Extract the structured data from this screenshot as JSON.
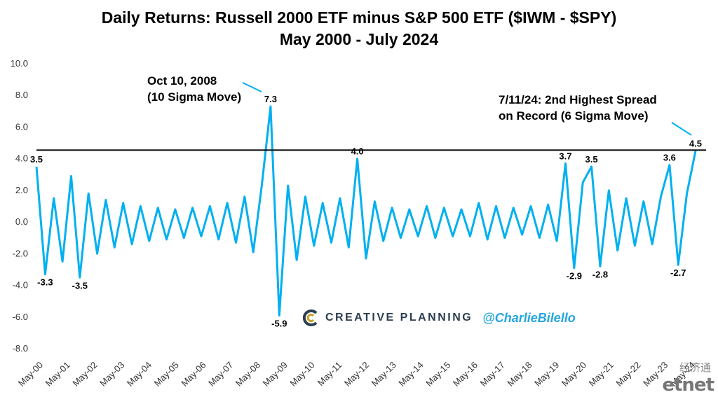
{
  "chart_data": {
    "type": "line",
    "title": "Daily Returns: Russell 2000 ETF minus S&P 500 ETF ($IWM - $SPY)",
    "subtitle": "May 2000 - July 2024",
    "xlabel": "",
    "ylabel": "",
    "ylim": [
      -8.0,
      10.0
    ],
    "y_ticks": [
      "10.0",
      "8.0",
      "6.0",
      "4.0",
      "2.0",
      "0.0",
      "-2.0",
      "-4.0",
      "-6.0",
      "-8.0"
    ],
    "x_ticks": [
      "May-00",
      "May-01",
      "May-02",
      "May-03",
      "May-04",
      "May-05",
      "May-06",
      "May-07",
      "May-08",
      "May-09",
      "May-10",
      "May-11",
      "May-12",
      "May-13",
      "May-14",
      "May-15",
      "May-16",
      "May-17",
      "May-18",
      "May-19",
      "May-20",
      "May-21",
      "May-22",
      "May-23",
      "May-24"
    ],
    "grid": false,
    "series_color": "#00b0f0",
    "reference_line": {
      "y": 4.5,
      "color": "#000000"
    },
    "series": [
      {
        "values": [
          3.5,
          -3.3,
          1.5,
          -2.5,
          2.9,
          -3.5,
          1.8,
          -2.0,
          1.4,
          -1.6,
          1.2,
          -1.4,
          1.0,
          -1.2,
          0.9,
          -1.1,
          0.8,
          -1.0,
          0.9,
          -0.9,
          1.0,
          -1.1,
          1.2,
          -1.3,
          1.6,
          -1.9,
          2.4,
          7.3,
          -5.9,
          2.3,
          -2.4,
          1.6,
          -1.5,
          1.2,
          -1.3,
          1.5,
          -1.6,
          4.0,
          -2.3,
          1.3,
          -1.2,
          0.9,
          -1.0,
          0.8,
          -0.9,
          1.0,
          -1.0,
          0.9,
          -0.9,
          0.8,
          -0.9,
          1.2,
          -1.1,
          1.0,
          -1.0,
          0.9,
          -0.8,
          1.0,
          -1.0,
          1.1,
          -1.2,
          3.7,
          -2.9,
          2.5,
          3.5,
          -2.8,
          2.0,
          -1.8,
          1.5,
          -1.5,
          1.3,
          -1.4,
          1.6,
          3.6,
          -2.7,
          1.8,
          4.5
        ]
      }
    ],
    "data_labels": [
      {
        "text": "3.5",
        "idx": 0,
        "y": 3.5
      },
      {
        "text": "-3.3",
        "idx": 1,
        "y": -3.3
      },
      {
        "text": "-3.5",
        "idx": 5,
        "y": -3.5
      },
      {
        "text": "7.3",
        "idx": 27,
        "y": 7.3
      },
      {
        "text": "-5.9",
        "idx": 28,
        "y": -5.9
      },
      {
        "text": "4.0",
        "idx": 37,
        "y": 4.0
      },
      {
        "text": "3.7",
        "idx": 61,
        "y": 3.7
      },
      {
        "text": "-2.9",
        "idx": 62,
        "y": -2.9
      },
      {
        "text": "3.5",
        "idx": 64,
        "y": 3.5
      },
      {
        "text": "-2.8",
        "idx": 65,
        "y": -2.8
      },
      {
        "text": "3.6",
        "idx": 73,
        "y": 3.6
      },
      {
        "text": "-2.7",
        "idx": 74,
        "y": -2.7
      },
      {
        "text": "4.5",
        "idx": 76,
        "y": 4.5
      }
    ],
    "annotations": [
      {
        "line1": "Oct 10, 2008",
        "line2": "(10 Sigma Move)"
      },
      {
        "line1": "7/11/24: 2nd Highest Spread",
        "line2": "on Record (6 Sigma Move)"
      }
    ]
  },
  "branding": {
    "logo_text": "CREATIVE PLANNING",
    "handle": "@CharlieBilello",
    "logo_icon": "creative-planning-logo-icon"
  },
  "watermark": {
    "cn": "经济通",
    "en": "etnet"
  }
}
